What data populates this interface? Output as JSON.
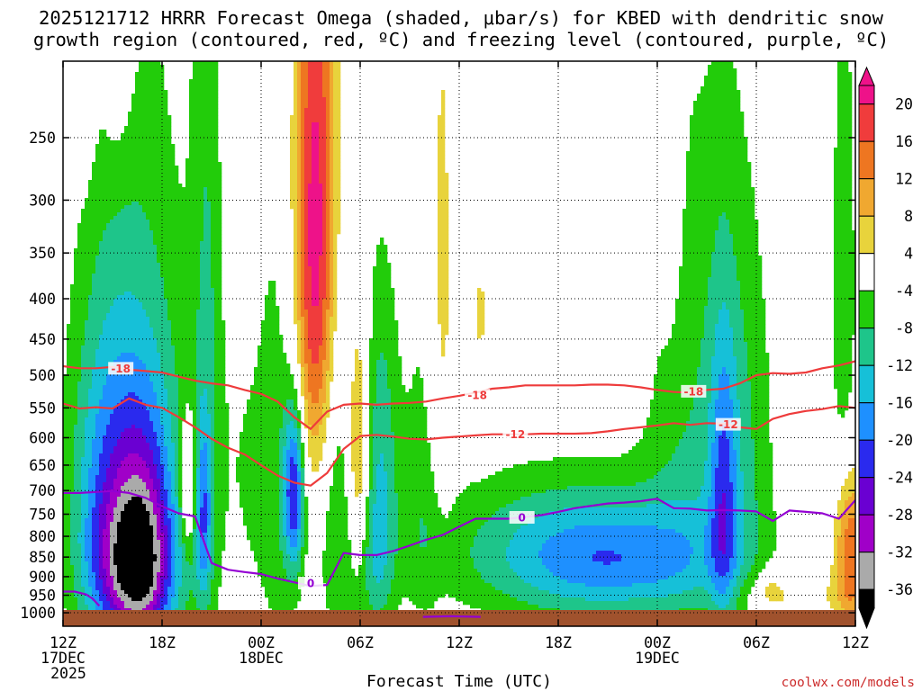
{
  "title": {
    "line1": "2025121712 HRRR Forecast Omega (shaded, μbar/s) for KBED with dendritic snow",
    "line2": "growth region (contoured, red, ºC) and freezing level (contoured, purple, ºC)"
  },
  "credit": "coolwx.com/models",
  "colors": {
    "ground": "#a0522d",
    "dgz_contour": "#ee3b3b",
    "freezing_contour": "#9400d3"
  },
  "chart_data": {
    "type": "time-height contour",
    "xlabel": "Forecast Time (UTC)",
    "ylabel": "",
    "y_axis_ticks": [
      250,
      300,
      350,
      400,
      450,
      500,
      550,
      600,
      650,
      700,
      750,
      800,
      850,
      900,
      950,
      1000
    ],
    "x_axis_ticks": [
      {
        "hours": 0,
        "lines": [
          "12Z",
          "17DEC",
          "2025"
        ]
      },
      {
        "hours": 6,
        "lines": [
          "18Z"
        ]
      },
      {
        "hours": 12,
        "lines": [
          "00Z",
          "18DEC"
        ]
      },
      {
        "hours": 18,
        "lines": [
          "06Z"
        ]
      },
      {
        "hours": 24,
        "lines": [
          "12Z"
        ]
      },
      {
        "hours": 30,
        "lines": [
          "18Z"
        ]
      },
      {
        "hours": 36,
        "lines": [
          "00Z",
          "19DEC"
        ]
      },
      {
        "hours": 42,
        "lines": [
          "06Z"
        ]
      },
      {
        "hours": 48,
        "lines": [
          "12Z"
        ]
      }
    ],
    "x_range_hours": [
      0,
      48
    ],
    "y_range_hpa": [
      200,
      1040
    ],
    "colorbar": {
      "labels": [
        "20",
        "16",
        "12",
        "8",
        "4",
        "-4",
        "-8",
        "-12",
        "-16",
        "-20",
        "-24",
        "-28",
        "-32",
        "-36"
      ],
      "bins": [
        {
          "min": 20,
          "max": 99,
          "color": "#ee1289"
        },
        {
          "min": 16,
          "max": 20,
          "color": "#f03c3c"
        },
        {
          "min": 12,
          "max": 16,
          "color": "#ee7621"
        },
        {
          "min": 8,
          "max": 12,
          "color": "#f0a830"
        },
        {
          "min": 4,
          "max": 8,
          "color": "#e8d33c"
        },
        {
          "min": -4,
          "max": 4,
          "color": "#ffffff"
        },
        {
          "min": -8,
          "max": -4,
          "color": "#22cc0a"
        },
        {
          "min": -12,
          "max": -8,
          "color": "#1ec58a"
        },
        {
          "min": -16,
          "max": -12,
          "color": "#16c0d8"
        },
        {
          "min": -20,
          "max": -16,
          "color": "#1e90ff"
        },
        {
          "min": -24,
          "max": -20,
          "color": "#2a2aee"
        },
        {
          "min": -28,
          "max": -24,
          "color": "#6a00d2"
        },
        {
          "min": -32,
          "max": -28,
          "color": "#a000c8"
        },
        {
          "min": -36,
          "max": -32,
          "color": "#aaaaaa"
        },
        {
          "min": -99,
          "max": -36,
          "color": "#000000"
        }
      ]
    },
    "omega_features": [
      {
        "t": 4.2,
        "p": 700,
        "st": 2.5,
        "sp": 350,
        "amp": -14
      },
      {
        "t": 4.7,
        "p": 840,
        "st": 1.3,
        "sp": 200,
        "amp": -22
      },
      {
        "t": 4.2,
        "p": 880,
        "st": 1.8,
        "sp": 110,
        "amp": -10
      },
      {
        "t": 2.3,
        "p": 740,
        "st": 1.2,
        "sp": 230,
        "amp": -8
      },
      {
        "t": 1.3,
        "p": 175,
        "st": 0.45,
        "sp": 60,
        "amp": 7
      },
      {
        "t": 3.3,
        "p": 140,
        "st": 0.7,
        "sp": 70,
        "amp": 9
      },
      {
        "t": 8.8,
        "p": 400,
        "st": 0.7,
        "sp": 450,
        "amp": -7
      },
      {
        "t": 7.6,
        "p": 690,
        "st": 0.35,
        "sp": 90,
        "amp": 13
      },
      {
        "t": 8.5,
        "p": 760,
        "st": 0.35,
        "sp": 140,
        "amp": -13
      },
      {
        "t": 10.9,
        "p": 310,
        "st": 0.9,
        "sp": 260,
        "amp": 6.5
      },
      {
        "t": 10.9,
        "p": 520,
        "st": 0.9,
        "sp": 230,
        "amp": -6
      },
      {
        "t": 13.5,
        "p": 600,
        "st": 1.4,
        "sp": 370,
        "amp": -10
      },
      {
        "t": 14.0,
        "p": 700,
        "st": 0.45,
        "sp": 120,
        "amp": -22
      },
      {
        "t": 15.3,
        "p": 330,
        "st": 0.9,
        "sp": 200,
        "amp": 18
      },
      {
        "t": 15.1,
        "p": 480,
        "st": 1.5,
        "sp": 350,
        "amp": 10
      },
      {
        "t": 16.6,
        "p": 450,
        "st": 0.8,
        "sp": 230,
        "amp": -6
      },
      {
        "t": 16.6,
        "p": 800,
        "st": 1.0,
        "sp": 220,
        "amp": -9
      },
      {
        "t": 17.9,
        "p": 640,
        "st": 0.5,
        "sp": 160,
        "amp": 13
      },
      {
        "t": 19.2,
        "p": 600,
        "st": 0.8,
        "sp": 200,
        "amp": -10
      },
      {
        "t": 19.0,
        "p": 880,
        "st": 0.8,
        "sp": 150,
        "amp": -8
      },
      {
        "t": 22.9,
        "p": 450,
        "st": 0.6,
        "sp": 270,
        "amp": 7
      },
      {
        "t": 22.0,
        "p": 660,
        "st": 1.0,
        "sp": 250,
        "amp": -6
      },
      {
        "t": 25.3,
        "p": 420,
        "st": 0.25,
        "sp": 60,
        "amp": 5
      },
      {
        "t": 29.8,
        "p": 830,
        "st": 5.5,
        "sp": 130,
        "amp": -10
      },
      {
        "t": 34.0,
        "p": 860,
        "st": 4.5,
        "sp": 100,
        "amp": -12
      },
      {
        "t": 38.0,
        "p": 560,
        "st": 2.0,
        "sp": 300,
        "amp": -7
      },
      {
        "t": 41.2,
        "p": 620,
        "st": 1.4,
        "sp": 280,
        "amp": -7
      },
      {
        "t": 40.0,
        "p": 720,
        "st": 0.6,
        "sp": 220,
        "amp": -13
      },
      {
        "t": 36.7,
        "p": 280,
        "st": 0.5,
        "sp": 100,
        "amp": 6
      },
      {
        "t": 47.7,
        "p": 840,
        "st": 0.7,
        "sp": 140,
        "amp": 17
      },
      {
        "t": 44.0,
        "p": 950,
        "st": 2.2,
        "sp": 40,
        "amp": 5
      },
      {
        "t": 47.3,
        "p": 420,
        "st": 0.6,
        "sp": 250,
        "amp": -7
      },
      {
        "t": 42.8,
        "p": 930,
        "st": 0.5,
        "sp": 40,
        "amp": 5
      }
    ],
    "contours_temperature_c": [
      {
        "level": "-18",
        "times": [
          0,
          1,
          2,
          3,
          4,
          5,
          6,
          7,
          8,
          9,
          10,
          11,
          12,
          13,
          14,
          15,
          16,
          17,
          18,
          19,
          20,
          21,
          22,
          23,
          24,
          25,
          26,
          27,
          28,
          29,
          30,
          31,
          32,
          33,
          34,
          35,
          36,
          37,
          38,
          39,
          40,
          41,
          42,
          43,
          44,
          45,
          46,
          47,
          48
        ],
        "pressures": [
          487,
          490,
          490,
          488,
          492,
          494,
          496,
          502,
          508,
          512,
          515,
          522,
          528,
          540,
          565,
          585,
          556,
          545,
          543,
          545,
          543,
          542,
          540,
          535,
          531,
          526,
          520,
          518,
          515,
          515,
          515,
          515,
          514,
          514,
          515,
          518,
          522,
          525,
          526,
          522,
          520,
          512,
          500,
          497,
          498,
          496,
          490,
          486,
          480
        ]
      },
      {
        "level": "-12",
        "times": [
          0,
          1,
          2,
          3,
          4,
          5,
          6,
          7,
          8,
          9,
          10,
          11,
          12,
          13,
          14,
          15,
          16,
          17,
          18,
          19,
          20,
          21,
          22,
          23,
          24,
          25,
          26,
          27,
          28,
          29,
          30,
          31,
          32,
          33,
          34,
          35,
          36,
          37,
          38,
          39,
          40,
          41,
          42,
          43,
          44,
          45,
          46,
          47,
          48
        ],
        "pressures": [
          543,
          551,
          549,
          551,
          535,
          545,
          550,
          565,
          582,
          602,
          618,
          630,
          650,
          670,
          684,
          690,
          665,
          620,
          597,
          595,
          598,
          602,
          603,
          600,
          598,
          596,
          594,
          594,
          594,
          593,
          593,
          593,
          592,
          589,
          585,
          582,
          579,
          575,
          578,
          575,
          576,
          582,
          585,
          568,
          560,
          555,
          552,
          547,
          550
        ]
      },
      {
        "level": "0",
        "times": [
          0,
          1,
          2,
          3,
          4,
          5,
          6,
          7,
          8,
          9,
          10,
          11,
          12,
          13,
          14,
          15,
          16,
          17,
          18,
          19,
          20,
          21,
          22,
          23,
          24,
          25,
          26,
          27,
          28,
          29,
          30,
          31,
          32,
          33,
          34,
          35,
          36,
          37,
          38,
          39,
          40,
          41,
          42,
          43,
          44,
          45,
          46,
          47,
          48
        ],
        "pressures": [
          705,
          705,
          703,
          701,
          705,
          715,
          733,
          748,
          755,
          865,
          882,
          888,
          893,
          905,
          915,
          925,
          922,
          840,
          845,
          845,
          835,
          822,
          808,
          797,
          778,
          760,
          760,
          760,
          756,
          752,
          745,
          737,
          732,
          727,
          725,
          722,
          717,
          737,
          738,
          742,
          741,
          742,
          744,
          765,
          742,
          745,
          748,
          760,
          720
        ]
      },
      {
        "level": "0",
        "times": [
          0,
          0.7,
          1.4,
          1.8,
          2.2
        ],
        "pressures": [
          940,
          940,
          948,
          960,
          980
        ]
      },
      {
        "level": "0",
        "times": [
          21.8,
          23.5,
          25.3
        ],
        "pressures": [
          1012,
          1010,
          1012
        ]
      }
    ],
    "contour_labels": [
      {
        "text": "-18",
        "t": 3.5,
        "p": 490,
        "contour": 0
      },
      {
        "text": "-18",
        "t": 25.1,
        "p": 530,
        "contour": 0
      },
      {
        "text": "-18",
        "t": 38.2,
        "p": 524,
        "contour": 0
      },
      {
        "text": "-12",
        "t": 27.4,
        "p": 594,
        "contour": 1
      },
      {
        "text": "-12",
        "t": 40.3,
        "p": 577,
        "contour": 1
      },
      {
        "text": "0",
        "t": 15.0,
        "p": 917,
        "contour": 2
      },
      {
        "text": "0",
        "t": 27.8,
        "p": 757,
        "contour": 2
      }
    ]
  }
}
